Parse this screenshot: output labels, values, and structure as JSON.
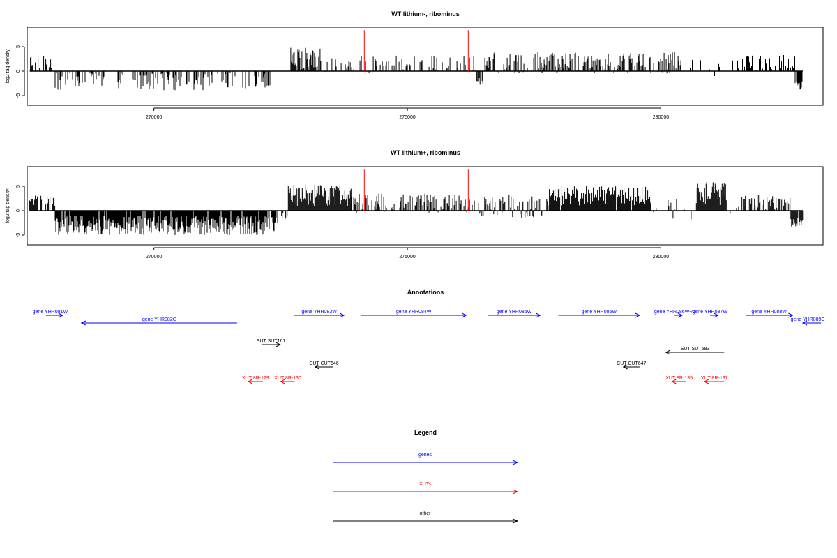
{
  "colors": {
    "gene": "#0000ff",
    "xut": "#ff0000",
    "other": "#000000",
    "marker": "#ff0000",
    "bars": "#000000"
  },
  "chart_data": [
    {
      "type": "bar",
      "title": "WT lithium-, ribominus",
      "ylabel": "log2 tag density",
      "xlim": [
        267500,
        283200
      ],
      "ylim": [
        -7,
        9
      ],
      "xticks": [
        270000,
        275000,
        280000
      ],
      "yticks": [
        -5,
        0,
        5
      ],
      "marker_positions": [
        274150,
        276200
      ],
      "segments": [
        {
          "from": 267550,
          "to": 268050,
          "mean": 2.0,
          "amp": 1.6,
          "density": 0.45
        },
        {
          "from": 268050,
          "to": 272300,
          "mean": -2.1,
          "amp": 1.8,
          "density": 0.35
        },
        {
          "from": 272300,
          "to": 272700,
          "mean": 0,
          "amp": 0.2,
          "density": 0.02
        },
        {
          "from": 272700,
          "to": 273300,
          "mean": 2.5,
          "amp": 2.3,
          "density": 0.9
        },
        {
          "from": 273300,
          "to": 273350,
          "mean": -2.0,
          "amp": 0.5,
          "density": 0.5
        },
        {
          "from": 273350,
          "to": 276350,
          "mean": 1.4,
          "amp": 1.8,
          "density": 0.3
        },
        {
          "from": 276350,
          "to": 276500,
          "mean": -2.0,
          "amp": 0.8,
          "density": 0.4
        },
        {
          "from": 276500,
          "to": 280400,
          "mean": 1.7,
          "amp": 2.2,
          "density": 0.5
        },
        {
          "from": 280400,
          "to": 281500,
          "mean": 0.4,
          "amp": 2.0,
          "density": 0.15
        },
        {
          "from": 281500,
          "to": 282650,
          "mean": 1.8,
          "amp": 1.6,
          "density": 0.55
        },
        {
          "from": 282650,
          "to": 282800,
          "mean": -3.0,
          "amp": 1.0,
          "density": 0.9
        }
      ]
    },
    {
      "type": "bar",
      "title": "WT lithium+, ribominus",
      "ylabel": "log2 tag density",
      "xlim": [
        267500,
        283200
      ],
      "ylim": [
        -7,
        9
      ],
      "xticks": [
        270000,
        275000,
        280000
      ],
      "yticks": [
        -5,
        0,
        5
      ],
      "marker_positions": [
        274150,
        276200
      ],
      "segments": [
        {
          "from": 267550,
          "to": 268050,
          "mean": 1.7,
          "amp": 1.4,
          "density": 0.6
        },
        {
          "from": 268050,
          "to": 272450,
          "mean": -3.0,
          "amp": 2.0,
          "density": 0.95
        },
        {
          "from": 272450,
          "to": 272650,
          "mean": -1.5,
          "amp": 1.0,
          "density": 0.3
        },
        {
          "from": 272650,
          "to": 273900,
          "mean": 3.2,
          "amp": 2.4,
          "density": 1.0
        },
        {
          "from": 273900,
          "to": 276400,
          "mean": 1.6,
          "amp": 2.0,
          "density": 0.55
        },
        {
          "from": 276400,
          "to": 277800,
          "mean": 0.8,
          "amp": 2.4,
          "density": 0.5
        },
        {
          "from": 277800,
          "to": 279800,
          "mean": 3.0,
          "amp": 2.0,
          "density": 0.95
        },
        {
          "from": 279800,
          "to": 280700,
          "mean": 0.5,
          "amp": 2.3,
          "density": 0.3
        },
        {
          "from": 280700,
          "to": 281300,
          "mean": 3.5,
          "amp": 2.4,
          "density": 1.0
        },
        {
          "from": 281300,
          "to": 281600,
          "mean": 0.3,
          "amp": 1.0,
          "density": 0.2
        },
        {
          "from": 281600,
          "to": 282550,
          "mean": 1.8,
          "amp": 1.5,
          "density": 0.7
        },
        {
          "from": 282550,
          "to": 282800,
          "mean": -2.3,
          "amp": 1.0,
          "density": 0.9
        }
      ]
    }
  ],
  "annotations": {
    "title": "Annotations",
    "features": [
      {
        "label": "gene YHR081W",
        "type": "gene",
        "strand": "+",
        "start": 267870,
        "end": 268200,
        "row": 0,
        "label_pos": "left"
      },
      {
        "label": "gene YHR082C",
        "type": "gene",
        "strand": "-",
        "start": 268570,
        "end": 271640,
        "row": 1
      },
      {
        "label": "gene YHR083W",
        "type": "gene",
        "strand": "+",
        "start": 272770,
        "end": 273750,
        "row": 0
      },
      {
        "label": "gene YHR084W",
        "type": "gene",
        "strand": "+",
        "start": 274090,
        "end": 276160,
        "row": 0
      },
      {
        "label": "gene YHR085W",
        "type": "gene",
        "strand": "+",
        "start": 276590,
        "end": 277620,
        "row": 0
      },
      {
        "label": "gene YHR086W",
        "type": "gene",
        "strand": "+",
        "start": 277980,
        "end": 279580,
        "row": 0
      },
      {
        "label": "gene YHR086W-A",
        "type": "gene",
        "strand": "+",
        "start": 280270,
        "end": 280420,
        "row": 0,
        "label_pos": "left"
      },
      {
        "label": "gene YHR087W",
        "type": "gene",
        "strand": "+",
        "start": 280970,
        "end": 281130,
        "row": 0,
        "label_pos": "left"
      },
      {
        "label": "gene YHR088W",
        "type": "gene",
        "strand": "+",
        "start": 281670,
        "end": 282600,
        "row": 0
      },
      {
        "label": "gene YHR089C",
        "type": "gene",
        "strand": "-",
        "start": 282800,
        "end": 283160,
        "row": 1,
        "label_pos": "left"
      },
      {
        "label": "SUT SUT161",
        "type": "other",
        "strand": "+",
        "start": 272130,
        "end": 272490,
        "row": 3
      },
      {
        "label": "CUT CUT646",
        "type": "other",
        "strand": "-",
        "start": 273180,
        "end": 273530,
        "row": 5
      },
      {
        "label": "SUT SUT583",
        "type": "other",
        "strand": "-",
        "start": 280100,
        "end": 281250,
        "row": 4
      },
      {
        "label": "CUT CUT647",
        "type": "other",
        "strand": "-",
        "start": 279260,
        "end": 279580,
        "row": 5
      },
      {
        "label": "XUT 8R-129",
        "type": "xut",
        "strand": "-",
        "start": 271860,
        "end": 272150,
        "row": 7
      },
      {
        "label": "XUT 8R-130",
        "type": "xut",
        "strand": "-",
        "start": 272500,
        "end": 272780,
        "row": 7
      },
      {
        "label": "XUT 8R-135",
        "type": "xut",
        "strand": "-",
        "start": 280220,
        "end": 280500,
        "row": 7
      },
      {
        "label": "XUT 8R-137",
        "type": "xut",
        "strand": "-",
        "start": 280860,
        "end": 281250,
        "row": 7
      }
    ]
  },
  "legend": {
    "title": "Legend",
    "items": [
      {
        "label": "genes",
        "type": "gene"
      },
      {
        "label": "XUTs",
        "type": "xut"
      },
      {
        "label": "other",
        "type": "other"
      }
    ]
  }
}
